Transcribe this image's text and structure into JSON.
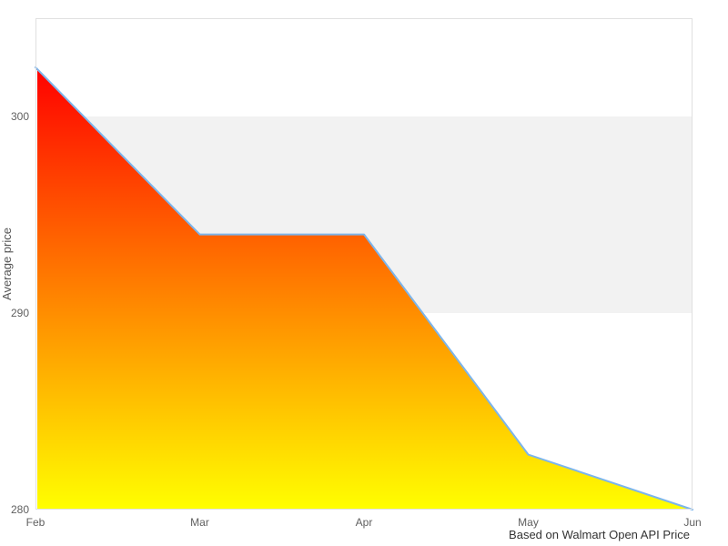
{
  "chart_data": {
    "type": "area",
    "title": "",
    "xlabel": "",
    "ylabel": "Average price",
    "caption": "Based on Walmart Open API Price",
    "categories": [
      "Feb",
      "Mar",
      "Apr",
      "May",
      "Jun"
    ],
    "series": [
      {
        "name": "Average price",
        "values": [
          302.5,
          294.0,
          294.0,
          282.8,
          280.0
        ]
      }
    ],
    "ylim": [
      280,
      305
    ],
    "yticks": [
      280,
      290,
      300
    ],
    "grid": "horizontal-band-only",
    "legend": "none",
    "plot_band": {
      "from": 290,
      "to": 300
    },
    "colors": {
      "background": "#ffffff",
      "plot_border": "#e0e0e0",
      "band": "#f2f2f2",
      "line": "#7cb5ec",
      "area_gradient_top": "#ff0000",
      "area_gradient_bottom": "#ffff00",
      "tick_label": "#606060",
      "axis_title": "#555555",
      "caption_text": "#333333"
    }
  }
}
